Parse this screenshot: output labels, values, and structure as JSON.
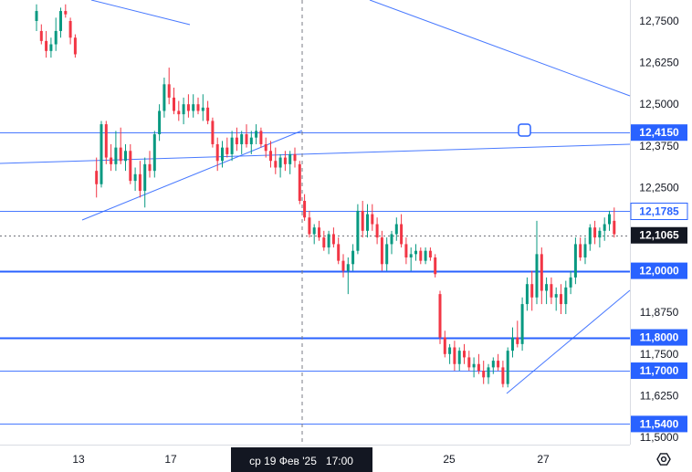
{
  "chart_data": {
    "type": "candlestick",
    "title": "",
    "price_axis": {
      "ticks": [
        "12,7500",
        "12,6250",
        "12,5000",
        "12,3750",
        "12,2500",
        "11,8750",
        "11,7500",
        "11,6250",
        "11,5000"
      ],
      "tick_values": [
        12.75,
        12.625,
        12.5,
        12.375,
        12.25,
        11.875,
        11.75,
        11.625,
        11.5
      ],
      "ylim": [
        11.48,
        12.79
      ]
    },
    "time_axis": {
      "ticks": [
        "13",
        "17",
        "25",
        "27"
      ],
      "cursor_label": "ср 19 Фев '25   17:00"
    },
    "level_labels": [
      {
        "text": "12,4150",
        "value": 12.415,
        "style": "filled"
      },
      {
        "text": "12,1785",
        "value": 12.1785,
        "style": "outline"
      },
      {
        "text": "12,1065",
        "value": 12.1065,
        "style": "current"
      },
      {
        "text": "12,0000",
        "value": 12.0,
        "style": "filled"
      },
      {
        "text": "11,8000",
        "value": 11.8,
        "style": "filled"
      },
      {
        "text": "11,7000",
        "value": 11.7,
        "style": "filled"
      },
      {
        "text": "11,5400",
        "value": 11.54,
        "style": "filled"
      }
    ],
    "horizontal_levels": [
      {
        "value": 12.415,
        "weight": "thin"
      },
      {
        "value": 12.1785,
        "weight": "thin"
      },
      {
        "value": 12.0,
        "weight": "thick"
      },
      {
        "value": 11.8,
        "weight": "thick"
      },
      {
        "value": 11.7,
        "weight": "thin"
      },
      {
        "value": 11.54,
        "weight": "thin"
      }
    ],
    "current_price": 12.1065,
    "candles_note": "OHLC values approximated from the image",
    "candles": [
      [
        12.75,
        12.8,
        12.72,
        12.78
      ],
      [
        12.72,
        12.74,
        12.68,
        12.69
      ],
      [
        12.69,
        12.72,
        12.64,
        12.66
      ],
      [
        12.66,
        12.7,
        12.64,
        12.68
      ],
      [
        12.68,
        12.76,
        12.66,
        12.72
      ],
      [
        12.72,
        12.79,
        12.7,
        12.78
      ],
      [
        12.78,
        12.8,
        12.76,
        12.77
      ],
      [
        12.75,
        12.76,
        12.68,
        12.7
      ],
      [
        12.7,
        12.71,
        12.64,
        12.65
      ],
      [
        12.3,
        12.34,
        12.22,
        12.26
      ],
      [
        12.26,
        12.45,
        12.25,
        12.44
      ],
      [
        12.44,
        12.45,
        12.32,
        12.34
      ],
      [
        12.34,
        12.38,
        12.3,
        12.32
      ],
      [
        12.32,
        12.42,
        12.3,
        12.37
      ],
      [
        12.37,
        12.43,
        12.32,
        12.33
      ],
      [
        12.33,
        12.38,
        12.3,
        12.36
      ],
      [
        12.36,
        12.38,
        12.26,
        12.27
      ],
      [
        12.27,
        12.31,
        12.24,
        12.29
      ],
      [
        12.29,
        12.33,
        12.22,
        12.24
      ],
      [
        12.24,
        12.34,
        12.19,
        12.32
      ],
      [
        12.32,
        12.36,
        12.28,
        12.3
      ],
      [
        12.3,
        12.42,
        12.28,
        12.41
      ],
      [
        12.41,
        12.5,
        12.39,
        12.48
      ],
      [
        12.48,
        12.58,
        12.46,
        12.56
      ],
      [
        12.56,
        12.61,
        12.5,
        12.52
      ],
      [
        12.52,
        12.55,
        12.47,
        12.48
      ],
      [
        12.48,
        12.51,
        12.45,
        12.47
      ],
      [
        12.47,
        12.52,
        12.44,
        12.5
      ],
      [
        12.5,
        12.53,
        12.46,
        12.48
      ],
      [
        12.48,
        12.53,
        12.46,
        12.5
      ],
      [
        12.5,
        12.52,
        12.47,
        12.48
      ],
      [
        12.48,
        12.53,
        12.45,
        12.49
      ],
      [
        12.49,
        12.51,
        12.44,
        12.45
      ],
      [
        12.45,
        12.46,
        12.37,
        12.38
      ],
      [
        12.38,
        12.4,
        12.3,
        12.33
      ],
      [
        12.33,
        12.39,
        12.31,
        12.37
      ],
      [
        12.37,
        12.4,
        12.34,
        12.35
      ],
      [
        12.35,
        12.42,
        12.33,
        12.4
      ],
      [
        12.4,
        12.43,
        12.36,
        12.38
      ],
      [
        12.38,
        12.42,
        12.35,
        12.41
      ],
      [
        12.41,
        12.44,
        12.37,
        12.38
      ],
      [
        12.38,
        12.42,
        12.35,
        12.4
      ],
      [
        12.4,
        12.44,
        12.38,
        12.42
      ],
      [
        12.42,
        12.43,
        12.37,
        12.38
      ],
      [
        12.38,
        12.4,
        12.34,
        12.36
      ],
      [
        12.36,
        12.39,
        12.31,
        12.33
      ],
      [
        12.33,
        12.37,
        12.29,
        12.31
      ],
      [
        12.31,
        12.35,
        12.28,
        12.34
      ],
      [
        12.34,
        12.36,
        12.3,
        12.32
      ],
      [
        12.32,
        12.36,
        12.29,
        12.35
      ],
      [
        12.35,
        12.37,
        12.31,
        12.33
      ],
      [
        12.32,
        12.33,
        12.2,
        12.21
      ],
      [
        12.21,
        12.23,
        12.15,
        12.16
      ],
      [
        12.16,
        12.18,
        12.1,
        12.11
      ],
      [
        12.11,
        12.14,
        12.08,
        12.13
      ],
      [
        12.13,
        12.15,
        12.09,
        12.1
      ],
      [
        12.1,
        12.12,
        12.06,
        12.07
      ],
      [
        12.07,
        12.12,
        12.05,
        12.11
      ],
      [
        12.11,
        12.13,
        12.07,
        12.08
      ],
      [
        12.08,
        12.1,
        12.02,
        12.03
      ],
      [
        12.03,
        12.05,
        11.98,
        12.0
      ],
      [
        12.0,
        12.04,
        11.93,
        12.02
      ],
      [
        12.02,
        12.08,
        12.0,
        12.06
      ],
      [
        12.06,
        12.2,
        12.05,
        12.18
      ],
      [
        12.18,
        12.21,
        12.1,
        12.12
      ],
      [
        12.12,
        12.2,
        12.1,
        12.17
      ],
      [
        12.17,
        12.2,
        12.12,
        12.14
      ],
      [
        12.14,
        12.16,
        12.08,
        12.1
      ],
      [
        12.1,
        12.12,
        12.0,
        12.02
      ],
      [
        12.02,
        12.1,
        12.0,
        12.08
      ],
      [
        12.08,
        12.12,
        12.05,
        12.11
      ],
      [
        12.11,
        12.16,
        12.09,
        12.14
      ],
      [
        12.14,
        12.17,
        12.07,
        12.08
      ],
      [
        12.08,
        12.1,
        12.02,
        12.04
      ],
      [
        12.04,
        12.07,
        12.0,
        12.05
      ],
      [
        12.05,
        12.08,
        12.03,
        12.06
      ],
      [
        12.06,
        12.07,
        12.02,
        12.03
      ],
      [
        12.03,
        12.07,
        12.02,
        12.06
      ],
      [
        12.06,
        12.07,
        12.03,
        12.04
      ],
      [
        12.04,
        12.05,
        11.98,
        11.99
      ],
      [
        11.93,
        11.94,
        11.78,
        11.8
      ],
      [
        11.8,
        11.82,
        11.74,
        11.75
      ],
      [
        11.75,
        11.78,
        11.72,
        11.77
      ],
      [
        11.77,
        11.79,
        11.7,
        11.72
      ],
      [
        11.72,
        11.77,
        11.7,
        11.76
      ],
      [
        11.76,
        11.78,
        11.72,
        11.74
      ],
      [
        11.74,
        11.76,
        11.7,
        11.71
      ],
      [
        11.71,
        11.74,
        11.68,
        11.72
      ],
      [
        11.72,
        11.75,
        11.69,
        11.7
      ],
      [
        11.7,
        11.73,
        11.66,
        11.68
      ],
      [
        11.68,
        11.72,
        11.66,
        11.71
      ],
      [
        11.71,
        11.74,
        11.69,
        11.73
      ],
      [
        11.73,
        11.75,
        11.7,
        11.71
      ],
      [
        11.71,
        11.73,
        11.65,
        11.66
      ],
      [
        11.66,
        11.77,
        11.65,
        11.76
      ],
      [
        11.76,
        11.83,
        11.74,
        11.8
      ],
      [
        11.8,
        11.85,
        11.77,
        11.78
      ],
      [
        11.78,
        11.92,
        11.76,
        11.9
      ],
      [
        11.9,
        11.98,
        11.88,
        11.96
      ],
      [
        11.96,
        12.0,
        11.88,
        11.92
      ],
      [
        11.92,
        12.15,
        11.9,
        12.05
      ],
      [
        12.05,
        12.07,
        11.9,
        11.94
      ],
      [
        11.94,
        11.98,
        11.9,
        11.96
      ],
      [
        11.96,
        11.98,
        11.9,
        11.92
      ],
      [
        11.92,
        11.95,
        11.88,
        11.93
      ],
      [
        11.93,
        11.96,
        11.87,
        11.9
      ],
      [
        11.9,
        11.97,
        11.87,
        11.95
      ],
      [
        11.95,
        12.0,
        11.93,
        11.98
      ],
      [
        11.98,
        12.1,
        11.96,
        12.08
      ],
      [
        12.08,
        12.1,
        12.03,
        12.04
      ],
      [
        12.04,
        12.1,
        12.02,
        12.08
      ],
      [
        12.08,
        12.14,
        12.06,
        12.13
      ],
      [
        12.13,
        12.15,
        12.08,
        12.1
      ],
      [
        12.1,
        12.13,
        12.07,
        12.12
      ],
      [
        12.12,
        12.16,
        12.09,
        12.14
      ],
      [
        12.14,
        12.18,
        12.12,
        12.17
      ],
      [
        12.15,
        12.19,
        12.1,
        12.11
      ]
    ]
  }
}
